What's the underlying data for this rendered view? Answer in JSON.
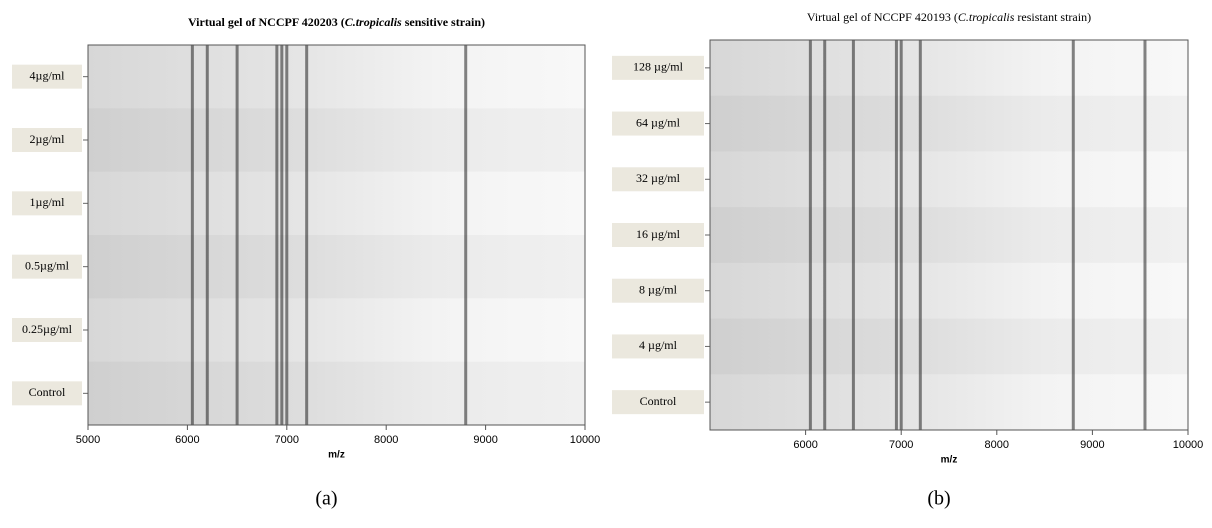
{
  "chart_data": [
    {
      "type": "gel",
      "title": [
        "Virtual gel of NCCPF 420203 (",
        "C.tropicalis",
        " sensitive strain)"
      ],
      "categories": [
        "4µg/ml",
        "2µg/ml",
        "1µg/ml",
        "0.5µg/ml",
        "0.25µg/ml",
        "Control"
      ],
      "xlabel": "m/z",
      "xlim": [
        5000,
        10000
      ],
      "xticks": [
        5000,
        6000,
        7000,
        8000,
        9000,
        10000
      ],
      "peaks": [
        6050,
        6200,
        6500,
        6900,
        6950,
        7000,
        7200,
        8800
      ],
      "caption": "(a)"
    },
    {
      "type": "gel",
      "title": [
        "Virtual gel of NCCPF 420193 (",
        "C.tropicalis",
        " resistant strain)"
      ],
      "categories": [
        "128 µg/ml",
        "64 µg/ml",
        "32 µg/ml",
        "16 µg/ml",
        "8 µg/ml",
        "4 µg/ml",
        "Control"
      ],
      "xlabel": "m/z",
      "xlim": [
        5000,
        10000
      ],
      "xticks": [
        6000,
        7000,
        8000,
        9000,
        10000
      ],
      "peaks": [
        6050,
        6200,
        6500,
        6950,
        7000,
        7200,
        8800,
        9550
      ],
      "caption": "(b)"
    }
  ]
}
